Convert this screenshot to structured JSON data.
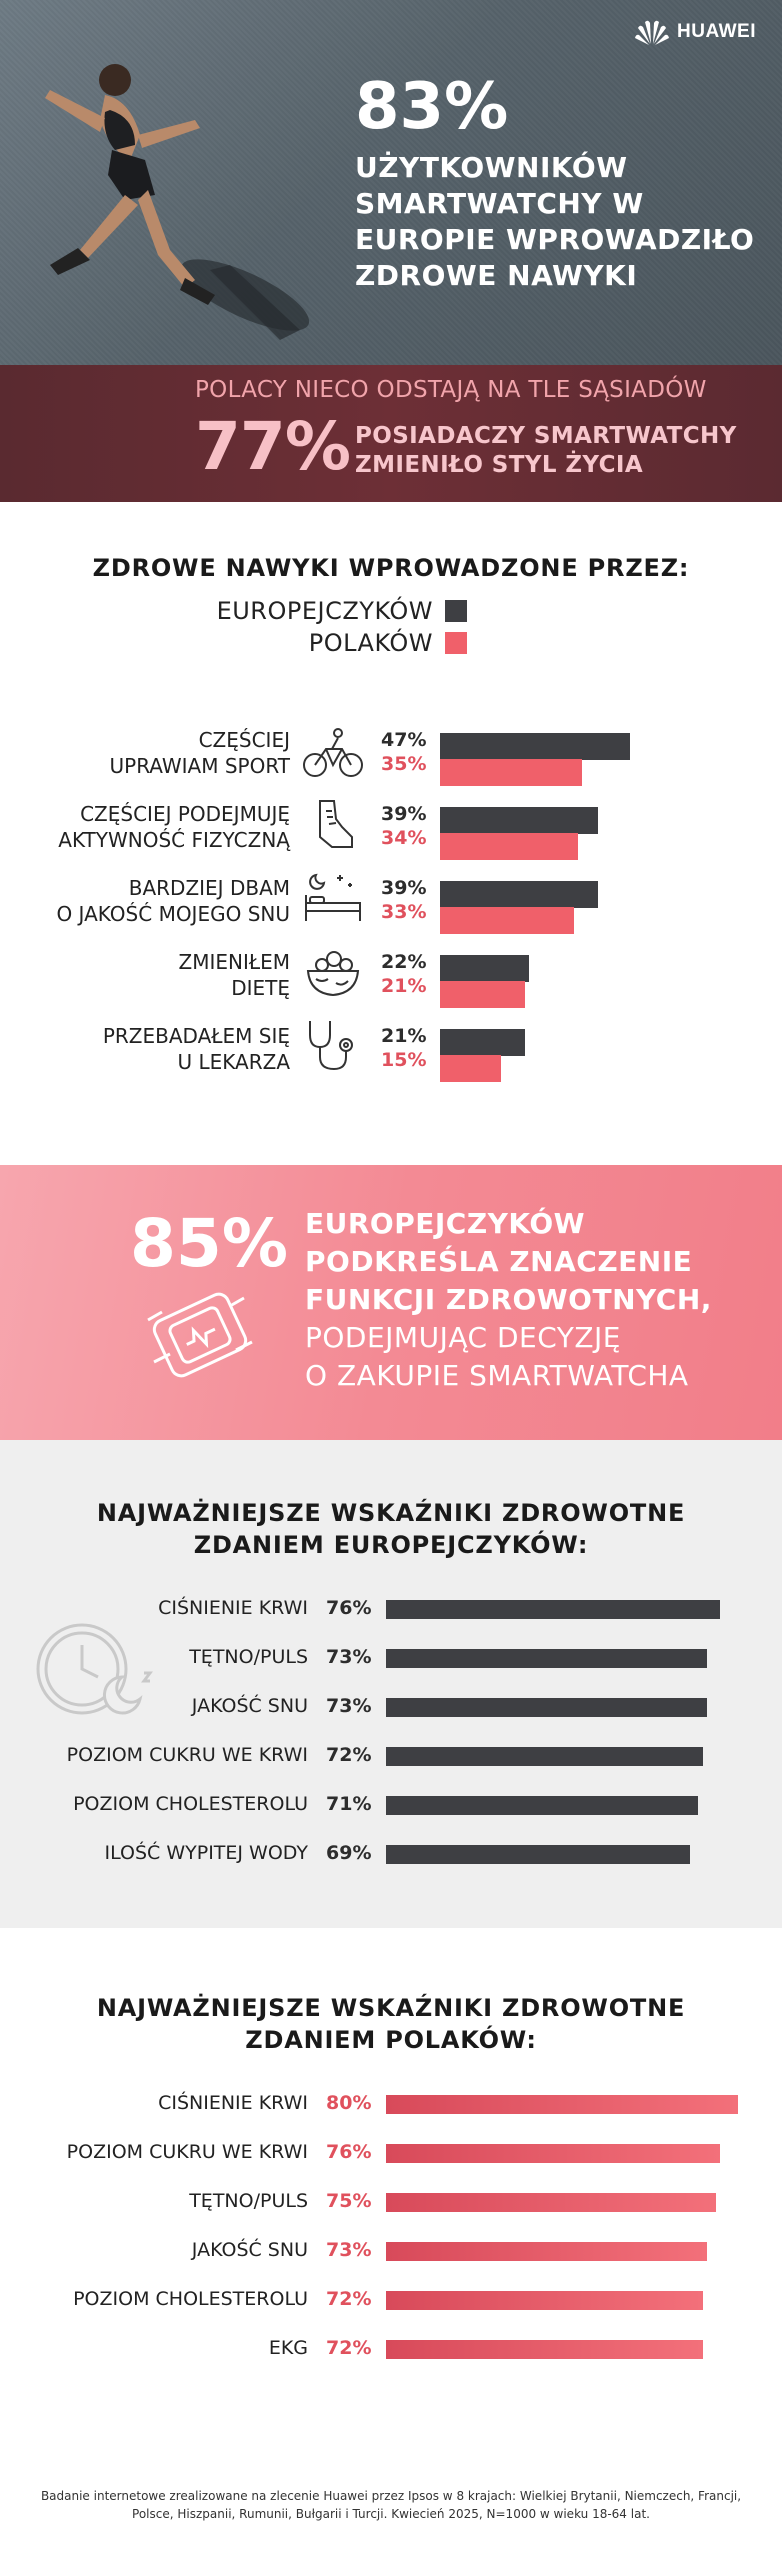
{
  "brand": {
    "logo_text": "HUAWEI"
  },
  "hero": {
    "percent": "83%",
    "lines": [
      "UŻYTKOWNIKÓW",
      "SMARTWATCHY W",
      "EUROPIE WPROWADZIŁO",
      "ZDROWE NAWYKI"
    ]
  },
  "poland_band": {
    "subtitle": "POLACY NIECO ODSTAJĄ NA TLE SĄSIADÓW",
    "percent": "77%",
    "lines": [
      "POSIADACZY SMARTWATCHY",
      "ZMIENIŁO STYL ŻYCIA"
    ]
  },
  "colors": {
    "europe": "#3e3f43",
    "poland": "#f0606a",
    "accent_pink": "#f38a94",
    "band": "#6d2f36"
  },
  "habits": {
    "title": "ZDROWE NAWYKI WPROWADZONE PRZEZ:",
    "legend": [
      "EUROPEJCZYKÓW",
      "POLAKÓW"
    ],
    "items": [
      {
        "label": [
          "CZĘŚCIEJ",
          "UPRAWIAM SPORT"
        ],
        "icon": "bicycle-icon",
        "europe_label": "47%",
        "poland_label": "35%"
      },
      {
        "label": [
          "CZĘŚCIEJ PODEJMUJĘ",
          "AKTYWNOŚĆ FIZYCZNĄ"
        ],
        "icon": "sneaker-icon",
        "europe_label": "39%",
        "poland_label": "34%"
      },
      {
        "label": [
          "BARDZIEJ DBAM",
          "O JAKOŚĆ MOJEGO SNU"
        ],
        "icon": "bed-icon",
        "europe_label": "39%",
        "poland_label": "33%"
      },
      {
        "label": [
          "ZMIENIŁEM",
          "DIETĘ"
        ],
        "icon": "salad-bowl-icon",
        "europe_label": "22%",
        "poland_label": "21%"
      },
      {
        "label": [
          "PRZEBADAŁEM SIĘ",
          "U LEKARZA"
        ],
        "icon": "stethoscope-icon",
        "europe_label": "21%",
        "poland_label": "15%"
      }
    ]
  },
  "purchase": {
    "percent": "85%",
    "bold_lines": [
      "EUROPEJCZYKÓW",
      "PODKREŚLA ZNACZENIE",
      "FUNKCJI ZDROWOTNYCH,"
    ],
    "light_lines": [
      "PODEJMUJĄC DECYZJĘ",
      "O ZAKUPIE SMARTWATCHA"
    ]
  },
  "europe_indicators": {
    "title": [
      "NAJWAŻNIEJSZE WSKAŹNIKI ZDROWOTNE",
      "ZDANIEM EUROPEJCZYKÓW:"
    ],
    "items": [
      {
        "label": "CIŚNIENIE KRWI",
        "pct": "76%"
      },
      {
        "label": "TĘTNO/PULS",
        "pct": "73%"
      },
      {
        "label": "JAKOŚĆ SNU",
        "pct": "73%"
      },
      {
        "label": "POZIOM CUKRU WE KRWI",
        "pct": "72%"
      },
      {
        "label": "POZIOM CHOLESTEROLU",
        "pct": "71%"
      },
      {
        "label": "ILOŚĆ WYPITEJ WODY",
        "pct": "69%"
      }
    ]
  },
  "poland_indicators": {
    "title": [
      "NAJWAŻNIEJSZE WSKAŹNIKI ZDROWOTNE",
      "ZDANIEM POLAKÓW:"
    ],
    "items": [
      {
        "label": "CIŚNIENIE KRWI",
        "pct": "80%"
      },
      {
        "label": "POZIOM CUKRU WE KRWI",
        "pct": "76%"
      },
      {
        "label": "TĘTNO/PULS",
        "pct": "75%"
      },
      {
        "label": "JAKOŚĆ SNU",
        "pct": "73%"
      },
      {
        "label": "POZIOM CHOLESTEROLU",
        "pct": "72%"
      },
      {
        "label": "EKG",
        "pct": "72%"
      }
    ]
  },
  "footnote": "Badanie internetowe zrealizowane na zlecenie Huawei przez Ipsos w 8 krajach: Wielkiej Brytanii, Niemczech, Francji, Polsce, Hiszpanii, Rumunii, Bułgarii i Turcji. Kwiecień 2025, N=1000 w wieku 18-64 lat.",
  "chart_data": [
    {
      "type": "bar",
      "title": "ZDROWE NAWYKI WPROWADZONE PRZEZ:",
      "categories": [
        "CZĘŚCIEJ UPRAWIAM SPORT",
        "CZĘŚCIEJ PODEJMUJĘ AKTYWNOŚĆ FIZYCZNĄ",
        "BARDZIEJ DBAM O JAKOŚĆ MOJEGO SNU",
        "ZMIENIŁEM DIETĘ",
        "PRZEBADAŁEM SIĘ U LEKARZA"
      ],
      "series": [
        {
          "name": "EUROPEJCZYKÓW",
          "values": [
            47,
            39,
            39,
            22,
            21
          ],
          "color": "#3e3f43"
        },
        {
          "name": "POLAKÓW",
          "values": [
            35,
            34,
            33,
            21,
            15
          ],
          "color": "#f0606a"
        }
      ],
      "orientation": "horizontal",
      "legend": "top-center"
    },
    {
      "type": "bar",
      "title": "NAJWAŻNIEJSZE WSKAŹNIKI ZDROWOTNE ZDANIEM EUROPEJCZYKÓW:",
      "categories": [
        "CIŚNIENIE KRWI",
        "TĘTNO/PULS",
        "JAKOŚĆ SNU",
        "POZIOM CUKRU WE KRWI",
        "POZIOM CHOLESTEROLU",
        "ILOŚĆ WYPITEJ WODY"
      ],
      "values": [
        76,
        73,
        73,
        72,
        71,
        69
      ],
      "color": "#3e3f43",
      "orientation": "horizontal"
    },
    {
      "type": "bar",
      "title": "NAJWAŻNIEJSZE WSKAŹNIKI ZDROWOTNE ZDANIEM POLAKÓW:",
      "categories": [
        "CIŚNIENIE KRWI",
        "POZIOM CUKRU WE KRWI",
        "TĘTNO/PULS",
        "JAKOŚĆ SNU",
        "POZIOM CHOLESTEROLU",
        "EKG"
      ],
      "values": [
        80,
        76,
        75,
        73,
        72,
        72
      ],
      "color": "#f0606a",
      "orientation": "horizontal"
    }
  ]
}
